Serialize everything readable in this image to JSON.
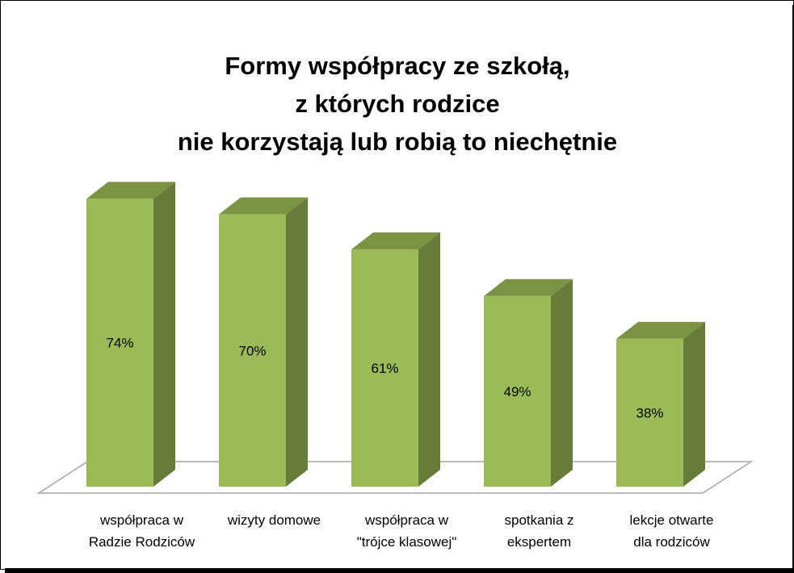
{
  "chart_data": {
    "type": "bar",
    "title_lines": [
      "Formy współpracy ze szkołą,",
      "z których rodzice",
      "nie korzystają lub robią to niechętnie"
    ],
    "categories": [
      [
        "współpraca w",
        "Radzie Rodziców"
      ],
      [
        "wizyty domowe"
      ],
      [
        "współpraca w",
        "\"trójce klasowej\""
      ],
      [
        "spotkania z",
        "ekspertem"
      ],
      [
        "lekcje otwarte",
        "dla rodziców"
      ]
    ],
    "values": [
      74,
      70,
      61,
      49,
      38
    ],
    "data_labels": [
      "74%",
      "70%",
      "61%",
      "49%",
      "38%"
    ],
    "ylim": [
      0,
      100
    ],
    "grid": false,
    "legend": "none",
    "colors": {
      "front": "#9bbb59",
      "side": "#677c3a",
      "top": "#7a9444",
      "floor_stroke": "#a6a6a6"
    }
  }
}
